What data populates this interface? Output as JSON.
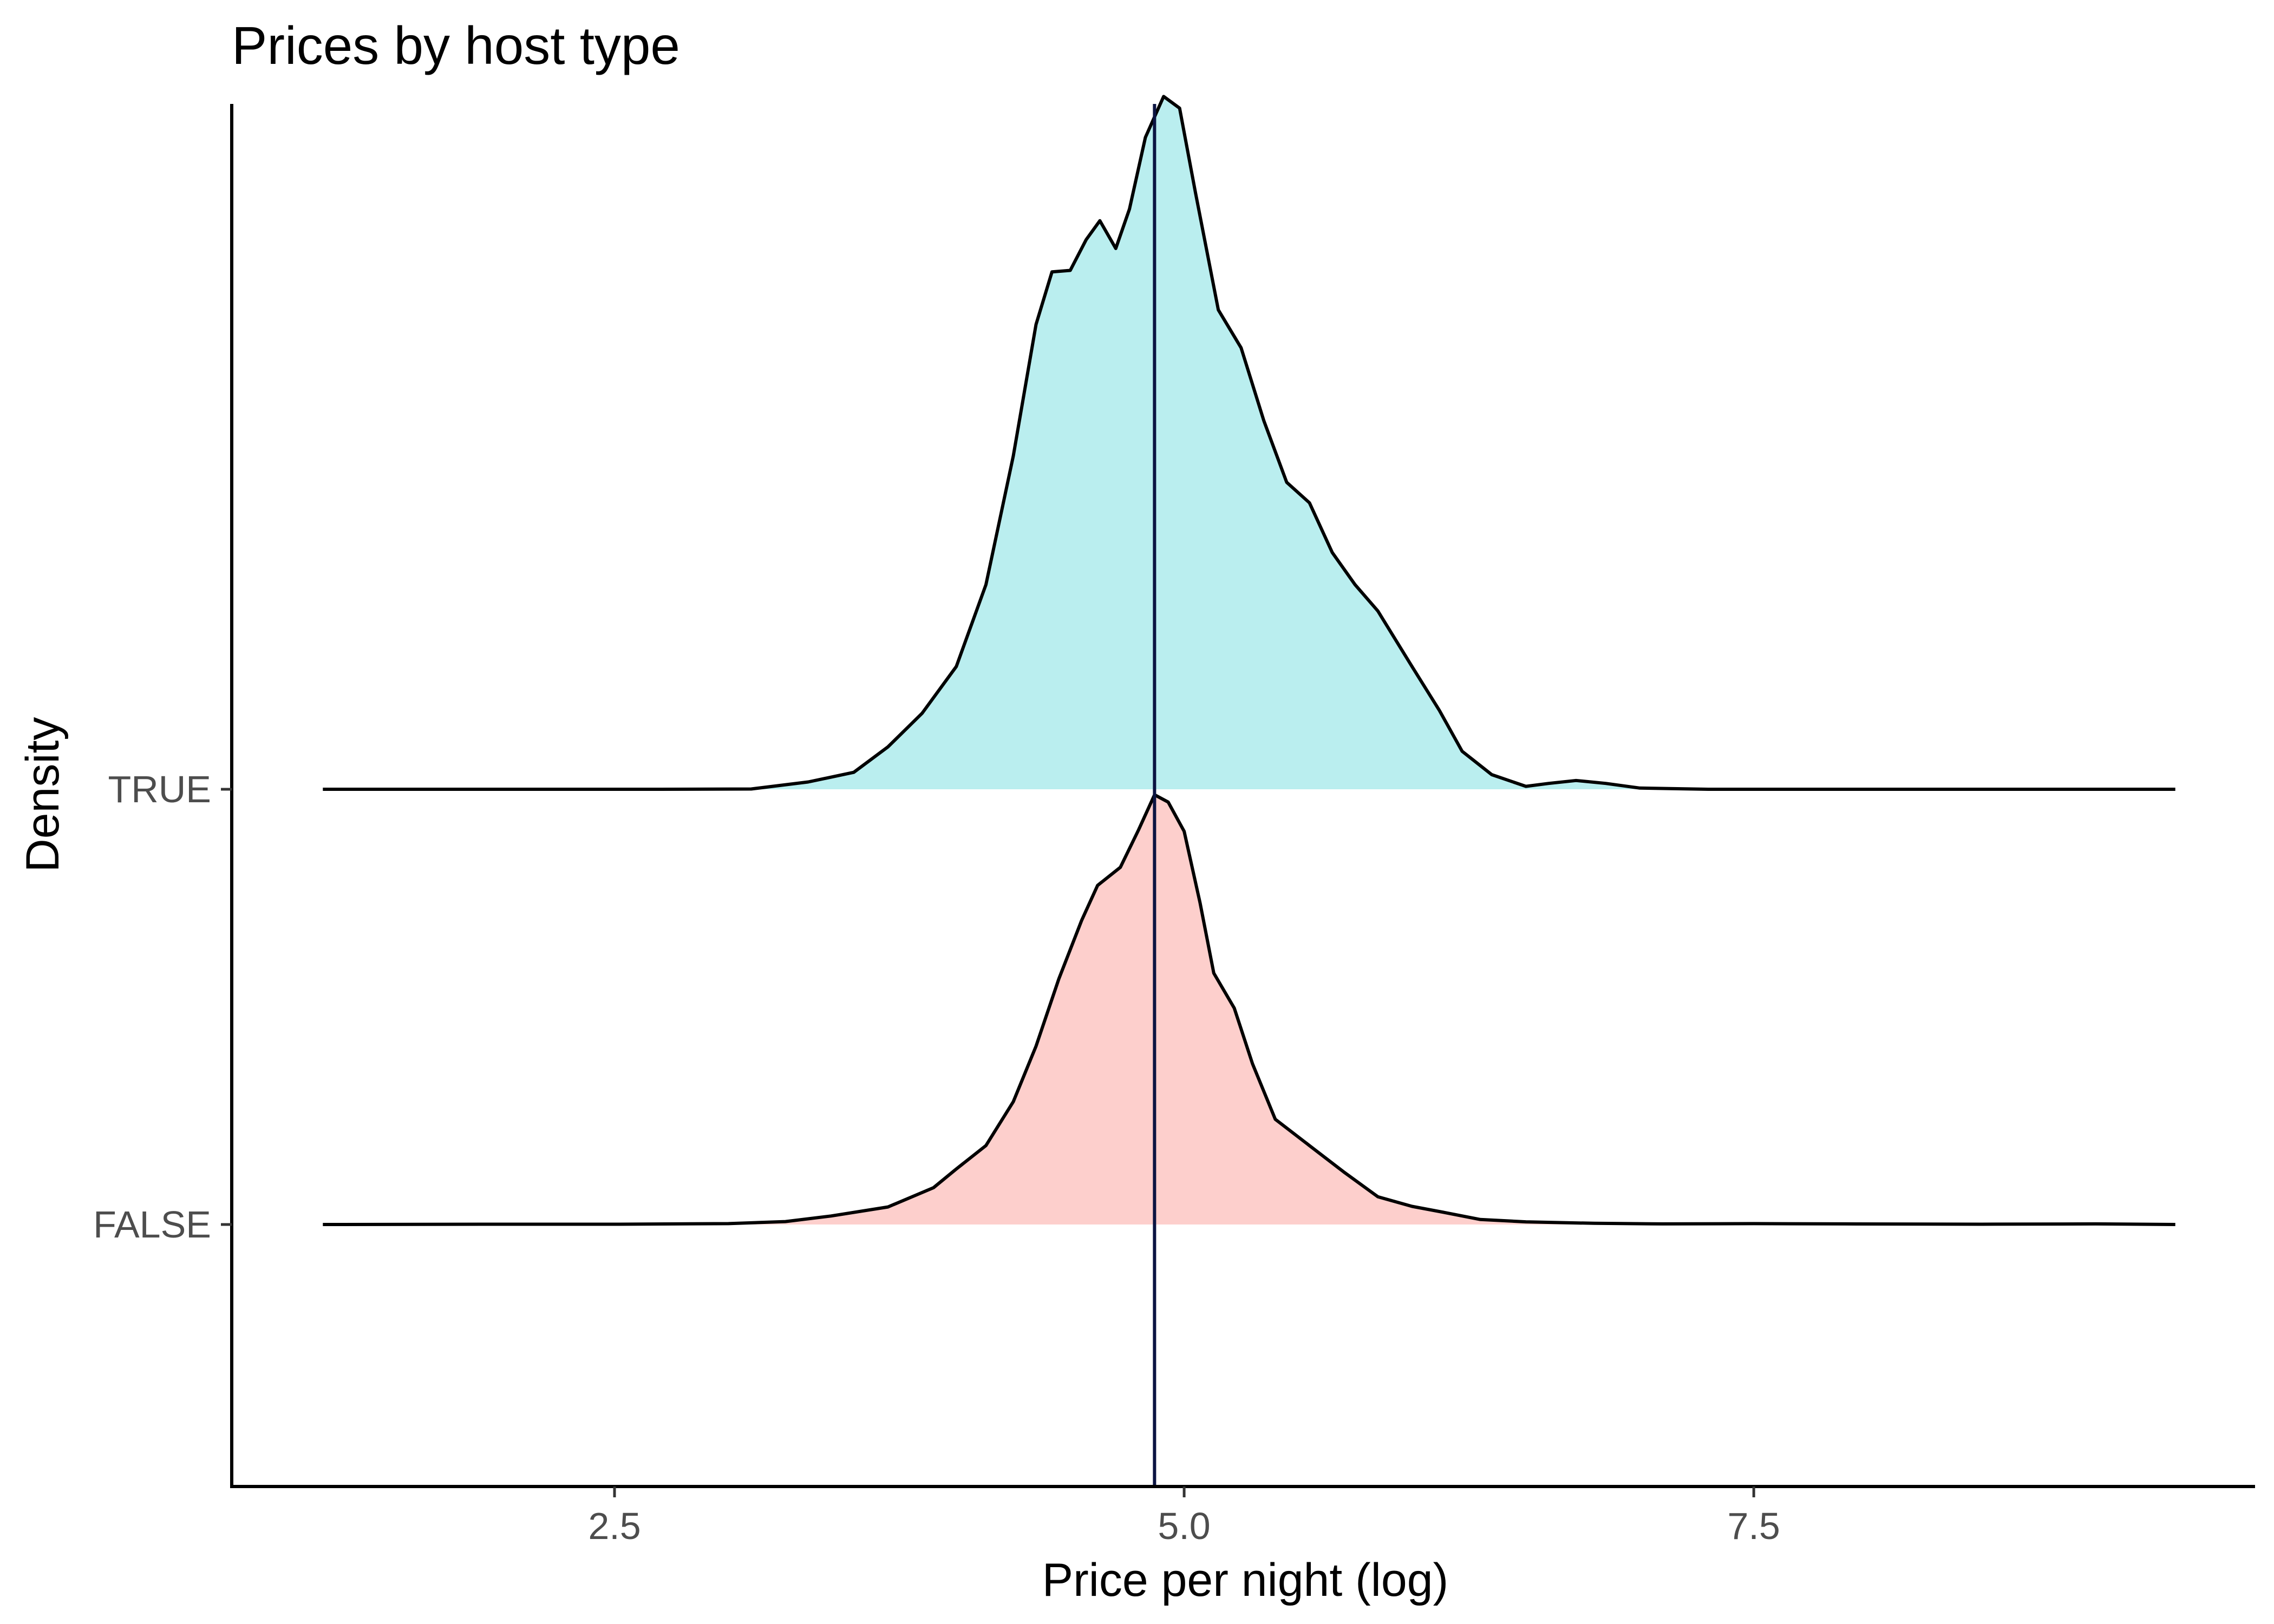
{
  "chart_data": {
    "type": "ridgeline",
    "title": "Prices by host type",
    "xlabel": "Price per night (log)",
    "ylabel": "Density",
    "xlim": [
      0.82,
      9.7
    ],
    "x_ticks": [
      {
        "value": 2.5,
        "label": "2.5"
      },
      {
        "value": 5.0,
        "label": "5.0"
      },
      {
        "value": 7.5,
        "label": "7.5"
      }
    ],
    "categories": [
      "FALSE",
      "TRUE"
    ],
    "reference_line": {
      "x": 4.87,
      "color": "#0b1442"
    },
    "grid": false,
    "legend": "none",
    "series": [
      {
        "name": "FALSE",
        "fill": "#f8766d",
        "fill_opacity": 0.35,
        "points": [
          [
            1.22,
            0.0
          ],
          [
            2.0,
            0.001
          ],
          [
            2.5,
            0.001
          ],
          [
            3.0,
            0.003
          ],
          [
            3.25,
            0.01
          ],
          [
            3.45,
            0.029
          ],
          [
            3.7,
            0.06
          ],
          [
            3.9,
            0.126
          ],
          [
            4.0,
            0.19
          ],
          [
            4.13,
            0.27
          ],
          [
            4.25,
            0.42
          ],
          [
            4.35,
            0.61
          ],
          [
            4.45,
            0.84
          ],
          [
            4.55,
            1.04
          ],
          [
            4.62,
            1.16
          ],
          [
            4.72,
            1.222
          ],
          [
            4.8,
            1.35
          ],
          [
            4.87,
            1.47
          ],
          [
            4.93,
            1.445
          ],
          [
            5.0,
            1.345
          ],
          [
            5.07,
            1.1
          ],
          [
            5.13,
            0.86
          ],
          [
            5.22,
            0.74
          ],
          [
            5.3,
            0.55
          ],
          [
            5.4,
            0.36
          ],
          [
            5.55,
            0.27
          ],
          [
            5.7,
            0.18
          ],
          [
            5.85,
            0.095
          ],
          [
            6.0,
            0.062
          ],
          [
            6.15,
            0.04
          ],
          [
            6.3,
            0.017
          ],
          [
            6.5,
            0.009
          ],
          [
            6.8,
            0.004
          ],
          [
            7.1,
            0.002
          ],
          [
            7.5,
            0.003
          ],
          [
            7.9,
            0.002
          ],
          [
            8.5,
            0.001
          ],
          [
            9.0,
            0.002
          ],
          [
            9.35,
            0.0
          ]
        ]
      },
      {
        "name": "TRUE",
        "fill": "#00bfc4",
        "fill_opacity": 0.27,
        "points": [
          [
            1.22,
            0.0
          ],
          [
            2.0,
            0.0
          ],
          [
            2.7,
            0.0
          ],
          [
            3.1,
            0.001
          ],
          [
            3.35,
            0.025
          ],
          [
            3.55,
            0.058
          ],
          [
            3.7,
            0.145
          ],
          [
            3.85,
            0.26
          ],
          [
            4.0,
            0.42
          ],
          [
            4.13,
            0.7
          ],
          [
            4.25,
            1.14
          ],
          [
            4.35,
            1.59
          ],
          [
            4.42,
            1.77
          ],
          [
            4.5,
            1.775
          ],
          [
            4.57,
            1.88
          ],
          [
            4.63,
            1.945
          ],
          [
            4.7,
            1.85
          ],
          [
            4.76,
            1.985
          ],
          [
            4.83,
            2.23
          ],
          [
            4.91,
            2.37
          ],
          [
            4.98,
            2.33
          ],
          [
            5.05,
            2.04
          ],
          [
            5.15,
            1.64
          ],
          [
            5.25,
            1.51
          ],
          [
            5.35,
            1.26
          ],
          [
            5.45,
            1.05
          ],
          [
            5.55,
            0.98
          ],
          [
            5.65,
            0.81
          ],
          [
            5.75,
            0.7
          ],
          [
            5.85,
            0.61
          ],
          [
            6.0,
            0.42
          ],
          [
            6.12,
            0.27
          ],
          [
            6.22,
            0.13
          ],
          [
            6.35,
            0.05
          ],
          [
            6.5,
            0.01
          ],
          [
            6.6,
            0.02
          ],
          [
            6.72,
            0.03
          ],
          [
            6.85,
            0.02
          ],
          [
            7.0,
            0.004
          ],
          [
            7.3,
            0.0
          ],
          [
            8.0,
            0.0
          ],
          [
            9.35,
            0.0
          ]
        ]
      }
    ]
  }
}
